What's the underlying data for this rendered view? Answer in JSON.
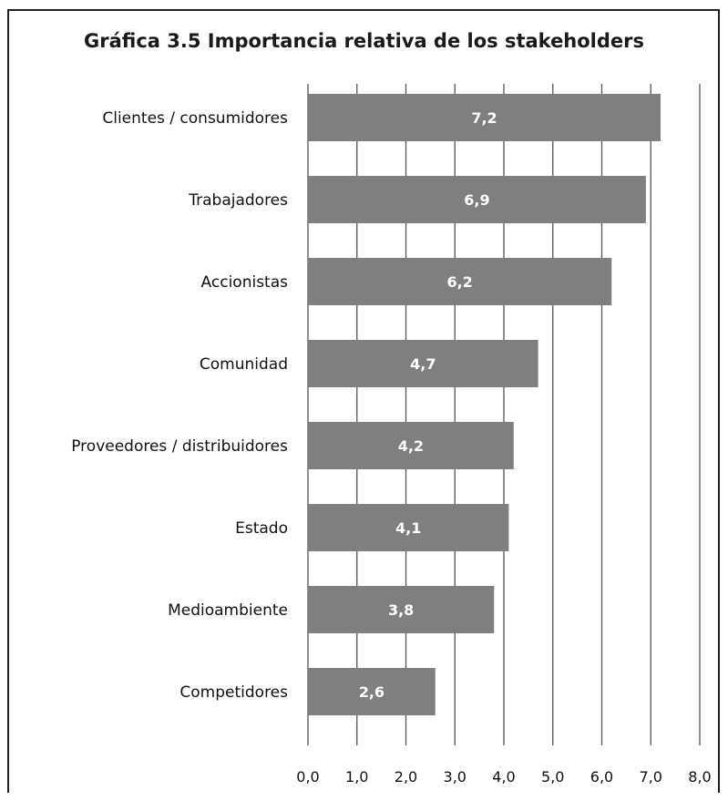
{
  "chart_data": {
    "type": "bar",
    "orientation": "horizontal",
    "title": "Gráfica 3.5 Importancia relativa de los stakeholders",
    "categories": [
      "Clientes / consumidores",
      "Trabajadores",
      "Accionistas",
      "Comunidad",
      "Proveedores / distribuidores",
      "Estado",
      "Medioambiente",
      "Competidores"
    ],
    "values": [
      7.2,
      6.9,
      6.2,
      4.7,
      4.2,
      4.1,
      3.8,
      2.6
    ],
    "data_labels": [
      "7,2",
      "6,9",
      "6,2",
      "4,7",
      "4,2",
      "4,1",
      "3,8",
      "2,6"
    ],
    "xlim": [
      0,
      8
    ],
    "x_ticks": [
      0,
      1,
      2,
      3,
      4,
      5,
      6,
      7,
      8
    ],
    "x_tick_labels": [
      "0,0",
      "1,0",
      "2,0",
      "3,0",
      "4,0",
      "5,0",
      "6,0",
      "7,0",
      "8,0"
    ],
    "xlabel": "",
    "ylabel": "",
    "grid": true,
    "legend": "none",
    "colors": {
      "bar": "#7f7f7f",
      "grid": "#555555",
      "data_label": "#ffffff",
      "text": "#111111"
    }
  }
}
